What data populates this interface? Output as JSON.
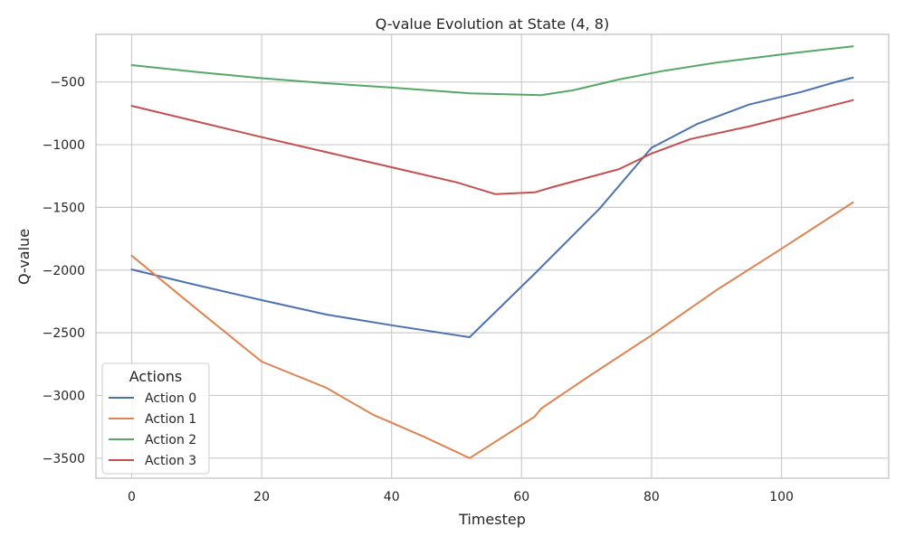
{
  "chart_data": {
    "type": "line",
    "title": "Q-value Evolution at State (4, 8)",
    "xlabel": "Timestep",
    "ylabel": "Q-value",
    "xlim": [
      -5.5,
      116.5
    ],
    "ylim": [
      -3660,
      -120
    ],
    "xticks": [
      0,
      20,
      40,
      60,
      80,
      100
    ],
    "yticks": [
      -3500,
      -3000,
      -2500,
      -2000,
      -1500,
      -1000,
      -500
    ],
    "grid": true,
    "legend": {
      "title": "Actions",
      "placement": "lower-left"
    },
    "series": [
      {
        "name": "Action 0",
        "color": "#4c72b0",
        "points": [
          [
            0,
            -1995
          ],
          [
            10,
            -2120
          ],
          [
            20,
            -2240
          ],
          [
            30,
            -2355
          ],
          [
            40,
            -2440
          ],
          [
            52,
            -2535
          ],
          [
            62,
            -2030
          ],
          [
            72,
            -1510
          ],
          [
            80,
            -1025
          ],
          [
            87,
            -835
          ],
          [
            95,
            -680
          ],
          [
            103,
            -580
          ],
          [
            108,
            -505
          ],
          [
            111,
            -465
          ]
        ]
      },
      {
        "name": "Action 1",
        "color": "#dd8452",
        "points": [
          [
            0,
            -1885
          ],
          [
            10,
            -2310
          ],
          [
            20,
            -2730
          ],
          [
            30,
            -2940
          ],
          [
            37,
            -3150
          ],
          [
            45,
            -3330
          ],
          [
            52,
            -3500
          ],
          [
            62,
            -3170
          ],
          [
            63,
            -3105
          ],
          [
            70,
            -2860
          ],
          [
            80,
            -2520
          ],
          [
            90,
            -2160
          ],
          [
            100,
            -1830
          ],
          [
            111,
            -1460
          ]
        ]
      },
      {
        "name": "Action 2",
        "color": "#55a868",
        "points": [
          [
            0,
            -365
          ],
          [
            10,
            -420
          ],
          [
            20,
            -470
          ],
          [
            30,
            -510
          ],
          [
            40,
            -545
          ],
          [
            52,
            -590
          ],
          [
            63,
            -605
          ],
          [
            68,
            -565
          ],
          [
            75,
            -480
          ],
          [
            82,
            -410
          ],
          [
            90,
            -345
          ],
          [
            100,
            -280
          ],
          [
            111,
            -215
          ]
        ]
      },
      {
        "name": "Action 3",
        "color": "#c44e52",
        "points": [
          [
            0,
            -690
          ],
          [
            10,
            -815
          ],
          [
            20,
            -940
          ],
          [
            30,
            -1060
          ],
          [
            40,
            -1180
          ],
          [
            50,
            -1300
          ],
          [
            56,
            -1395
          ],
          [
            62,
            -1380
          ],
          [
            65,
            -1335
          ],
          [
            75,
            -1195
          ],
          [
            80,
            -1070
          ],
          [
            86,
            -955
          ],
          [
            95,
            -855
          ],
          [
            111,
            -645
          ]
        ]
      }
    ]
  }
}
